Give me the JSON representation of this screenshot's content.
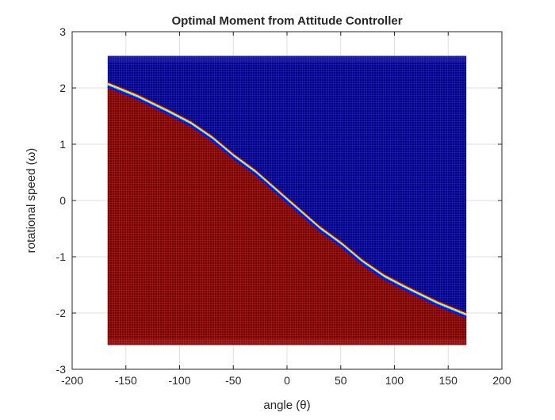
{
  "chart_data": {
    "type": "heatmap",
    "title": "Optimal Moment from Attitude Controller",
    "xlabel": "angle (θ)",
    "ylabel": "rotational speed (ω)",
    "xlim": [
      -200,
      200
    ],
    "ylim": [
      -3,
      3
    ],
    "xticks": [
      "-200",
      "-150",
      "-100",
      "-50",
      "0",
      "50",
      "100",
      "150",
      "200"
    ],
    "yticks": [
      "-3",
      "-2",
      "-1",
      "0",
      "1",
      "2",
      "3"
    ],
    "grid": true,
    "data_extent": {
      "x": [
        -167,
        167
      ],
      "y": [
        -2.57,
        2.57
      ]
    },
    "switching_curve": {
      "description_values_x": [
        -167,
        -140,
        -110,
        -90,
        -70,
        -50,
        -30,
        0,
        30,
        50,
        70,
        90,
        110,
        140,
        167
      ],
      "y": [
        2.05,
        1.84,
        1.56,
        1.36,
        1.1,
        0.78,
        0.5,
        0.0,
        -0.5,
        -0.78,
        -1.1,
        -1.36,
        -1.56,
        -1.84,
        -2.05
      ]
    },
    "colormap": {
      "above_curve": "#00008f",
      "below_curve": "#800000",
      "transition": [
        "#800000",
        "#ff0000",
        "#ffff00",
        "#00ffff",
        "#0000ff",
        "#00008f"
      ]
    }
  }
}
